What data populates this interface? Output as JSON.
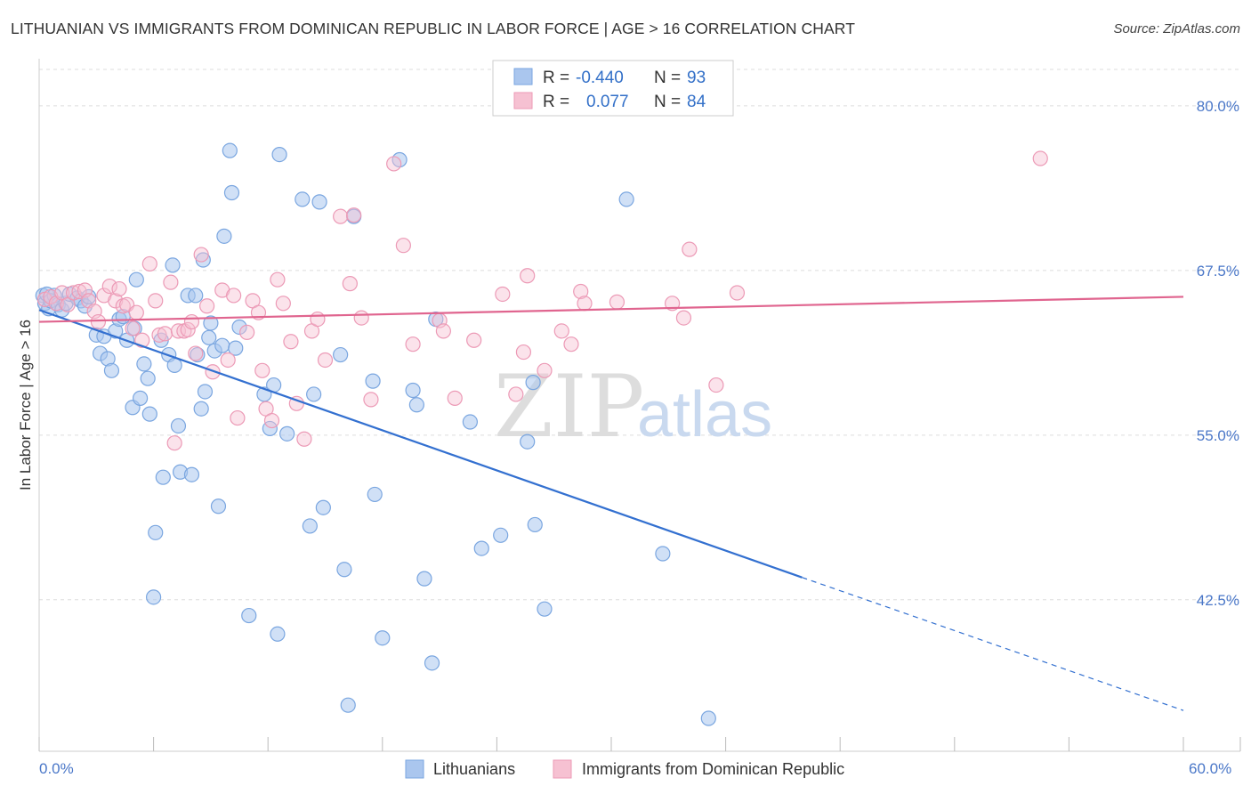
{
  "title": "LITHUANIAN VS IMMIGRANTS FROM DOMINICAN REPUBLIC IN LABOR FORCE | AGE > 16 CORRELATION CHART",
  "source": "Source: ZipAtlas.com",
  "watermark": {
    "zip": "ZIP",
    "atlas": "atlas"
  },
  "legend": {
    "r_label": "R =",
    "n_label": "N =",
    "blue": {
      "r": "-0.440",
      "n": "93"
    },
    "pink": {
      "r": "0.077",
      "n": "84"
    }
  },
  "bottom_legend": [
    "Lithuanians",
    "Immigrants from Dominican Republic"
  ],
  "colors": {
    "blue_fill": "#aac6ee",
    "blue_stroke": "#7aa6e0",
    "blue_line": "#3370d0",
    "pink_fill": "#f6c1d2",
    "pink_stroke": "#ec9ab6",
    "pink_line": "#e0658f",
    "grid": "#dddddd",
    "tick_text": "#4a77c8"
  },
  "chart_data": {
    "type": "scatter",
    "title": "LITHUANIAN VS IMMIGRANTS FROM DOMINICAN REPUBLIC IN LABOR FORCE | AGE > 16 CORRELATION CHART",
    "xlabel": "",
    "ylabel": "In Labor Force | Age > 16",
    "xlim": [
      0,
      60
    ],
    "ylim": [
      31.0,
      83.3
    ],
    "x_tick_labels": [
      "0.0%",
      "60.0%"
    ],
    "y_ticks": [
      42.5,
      55.0,
      67.5,
      80.0
    ],
    "y_tick_labels": [
      "42.5%",
      "55.0%",
      "67.5%",
      "80.0%"
    ],
    "grid": true,
    "legend_position": "top-center",
    "series": [
      {
        "name": "Lithuanians",
        "color": "#aac6ee",
        "r": -0.44,
        "n": 93,
        "trend": {
          "x0": 0,
          "y0": 64.5,
          "x1": 40,
          "y1": 44.2,
          "dash_to_x": 60,
          "dash_to_y": 34.1
        },
        "points": [
          [
            0.2,
            65.6
          ],
          [
            0.3,
            65.0
          ],
          [
            0.4,
            65.7
          ],
          [
            0.5,
            64.6
          ],
          [
            0.6,
            65.2
          ],
          [
            0.8,
            65.6
          ],
          [
            1.0,
            64.9
          ],
          [
            1.2,
            64.5
          ],
          [
            1.4,
            65.0
          ],
          [
            1.6,
            65.7
          ],
          [
            2.0,
            65.4
          ],
          [
            2.2,
            65.2
          ],
          [
            2.4,
            64.8
          ],
          [
            2.6,
            65.5
          ],
          [
            3.0,
            62.6
          ],
          [
            3.2,
            61.2
          ],
          [
            3.4,
            62.5
          ],
          [
            3.6,
            60.8
          ],
          [
            3.8,
            59.9
          ],
          [
            4.0,
            62.9
          ],
          [
            4.2,
            63.8
          ],
          [
            4.4,
            64.0
          ],
          [
            4.6,
            62.2
          ],
          [
            4.9,
            57.1
          ],
          [
            5.0,
            63.1
          ],
          [
            5.1,
            66.8
          ],
          [
            5.3,
            57.8
          ],
          [
            5.5,
            60.4
          ],
          [
            5.7,
            59.3
          ],
          [
            5.8,
            56.6
          ],
          [
            6.1,
            47.6
          ],
          [
            6.0,
            42.7
          ],
          [
            6.4,
            62.2
          ],
          [
            6.5,
            51.8
          ],
          [
            6.8,
            61.1
          ],
          [
            7.0,
            67.9
          ],
          [
            7.1,
            60.3
          ],
          [
            7.3,
            55.7
          ],
          [
            7.4,
            52.2
          ],
          [
            7.8,
            65.6
          ],
          [
            8.0,
            52.0
          ],
          [
            8.2,
            65.6
          ],
          [
            8.3,
            61.1
          ],
          [
            8.5,
            57.0
          ],
          [
            8.6,
            68.3
          ],
          [
            8.7,
            58.3
          ],
          [
            8.9,
            62.4
          ],
          [
            9.0,
            63.5
          ],
          [
            9.2,
            61.4
          ],
          [
            9.4,
            49.6
          ],
          [
            9.6,
            61.8
          ],
          [
            9.7,
            70.1
          ],
          [
            10.0,
            76.6
          ],
          [
            10.1,
            73.4
          ],
          [
            10.3,
            61.6
          ],
          [
            10.5,
            63.2
          ],
          [
            11.0,
            41.3
          ],
          [
            11.8,
            58.1
          ],
          [
            12.1,
            55.5
          ],
          [
            12.3,
            58.8
          ],
          [
            12.5,
            39.9
          ],
          [
            12.6,
            76.3
          ],
          [
            13.0,
            55.1
          ],
          [
            13.8,
            72.9
          ],
          [
            14.2,
            48.1
          ],
          [
            14.4,
            58.1
          ],
          [
            14.7,
            72.7
          ],
          [
            14.9,
            49.5
          ],
          [
            15.8,
            61.1
          ],
          [
            16.0,
            44.8
          ],
          [
            16.2,
            34.5
          ],
          [
            16.5,
            71.6
          ],
          [
            17.5,
            59.1
          ],
          [
            17.6,
            50.5
          ],
          [
            18.0,
            39.6
          ],
          [
            18.9,
            75.9
          ],
          [
            19.6,
            58.4
          ],
          [
            19.8,
            57.3
          ],
          [
            20.2,
            44.1
          ],
          [
            20.6,
            37.7
          ],
          [
            20.8,
            63.8
          ],
          [
            22.6,
            56.0
          ],
          [
            23.2,
            46.4
          ],
          [
            24.2,
            47.4
          ],
          [
            25.6,
            54.5
          ],
          [
            25.9,
            59.0
          ],
          [
            26.0,
            48.2
          ],
          [
            26.5,
            41.8
          ],
          [
            30.8,
            72.9
          ],
          [
            32.7,
            46.0
          ],
          [
            35.1,
            33.5
          ]
        ]
      },
      {
        "name": "Immigrants from Dominican Republic",
        "color": "#f6c1d2",
        "r": 0.077,
        "n": 84,
        "trend": {
          "x0": 0,
          "y0": 63.6,
          "x1": 60,
          "y1": 65.5
        },
        "points": [
          [
            0.3,
            65.3
          ],
          [
            0.6,
            65.5
          ],
          [
            0.9,
            65.0
          ],
          [
            1.2,
            65.8
          ],
          [
            1.5,
            64.9
          ],
          [
            1.8,
            65.8
          ],
          [
            2.1,
            65.9
          ],
          [
            2.4,
            66.0
          ],
          [
            2.6,
            65.2
          ],
          [
            2.9,
            64.4
          ],
          [
            3.1,
            63.6
          ],
          [
            3.4,
            65.6
          ],
          [
            3.7,
            66.3
          ],
          [
            4.0,
            65.2
          ],
          [
            4.2,
            66.1
          ],
          [
            4.4,
            64.8
          ],
          [
            4.6,
            64.9
          ],
          [
            4.9,
            63.1
          ],
          [
            5.1,
            64.3
          ],
          [
            5.4,
            62.2
          ],
          [
            5.8,
            68.0
          ],
          [
            6.1,
            65.2
          ],
          [
            6.3,
            62.6
          ],
          [
            6.6,
            62.7
          ],
          [
            6.9,
            66.6
          ],
          [
            7.1,
            54.4
          ],
          [
            7.3,
            62.9
          ],
          [
            7.6,
            62.9
          ],
          [
            7.8,
            63.0
          ],
          [
            8.0,
            63.6
          ],
          [
            8.2,
            61.2
          ],
          [
            8.5,
            68.7
          ],
          [
            8.8,
            64.8
          ],
          [
            9.1,
            59.8
          ],
          [
            9.6,
            66.0
          ],
          [
            9.9,
            60.7
          ],
          [
            10.2,
            65.6
          ],
          [
            10.4,
            56.3
          ],
          [
            10.9,
            62.8
          ],
          [
            11.2,
            65.2
          ],
          [
            11.5,
            64.3
          ],
          [
            11.7,
            59.9
          ],
          [
            11.9,
            57.0
          ],
          [
            12.2,
            56.1
          ],
          [
            12.5,
            66.8
          ],
          [
            12.8,
            65.0
          ],
          [
            13.2,
            62.1
          ],
          [
            13.5,
            57.4
          ],
          [
            13.9,
            54.7
          ],
          [
            14.3,
            62.9
          ],
          [
            14.6,
            63.8
          ],
          [
            15.0,
            60.7
          ],
          [
            15.8,
            71.6
          ],
          [
            16.3,
            66.5
          ],
          [
            16.5,
            71.7
          ],
          [
            16.9,
            63.9
          ],
          [
            17.4,
            57.7
          ],
          [
            18.6,
            75.6
          ],
          [
            19.1,
            69.4
          ],
          [
            19.6,
            61.9
          ],
          [
            21.0,
            63.7
          ],
          [
            21.2,
            62.9
          ],
          [
            21.8,
            57.8
          ],
          [
            22.8,
            62.2
          ],
          [
            24.3,
            65.7
          ],
          [
            25.0,
            58.1
          ],
          [
            25.4,
            61.3
          ],
          [
            25.6,
            67.1
          ],
          [
            26.5,
            59.9
          ],
          [
            27.4,
            62.9
          ],
          [
            27.9,
            61.9
          ],
          [
            28.4,
            65.9
          ],
          [
            28.6,
            65.0
          ],
          [
            30.3,
            65.1
          ],
          [
            33.2,
            65.0
          ],
          [
            33.8,
            63.9
          ],
          [
            34.1,
            69.1
          ],
          [
            35.5,
            58.8
          ],
          [
            36.6,
            65.8
          ],
          [
            52.5,
            76.0
          ]
        ]
      }
    ]
  }
}
